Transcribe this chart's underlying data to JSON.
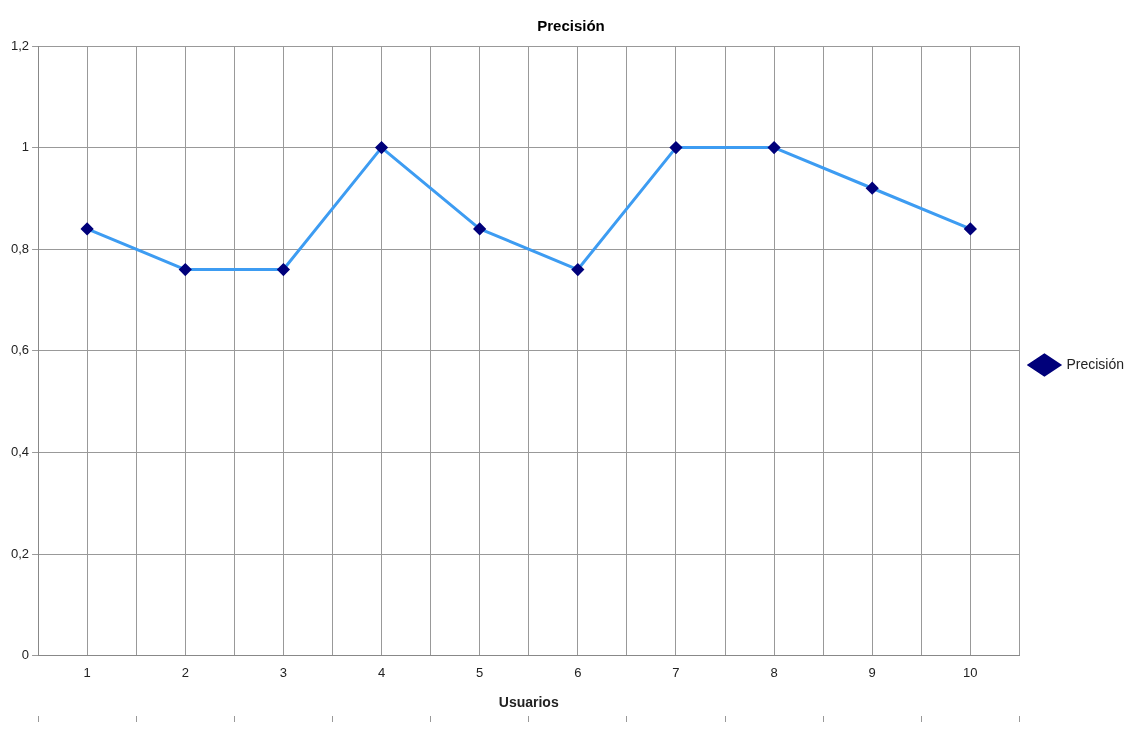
{
  "chart_data": {
    "type": "line",
    "title": "Precisión",
    "xlabel": "Usuarios",
    "categories": [
      "1",
      "2",
      "3",
      "4",
      "5",
      "6",
      "7",
      "8",
      "9",
      "10"
    ],
    "series": [
      {
        "name": "Precisión",
        "color": "#3d9cf2",
        "values": [
          0.84,
          0.76,
          0.76,
          1,
          0.84,
          0.76,
          1,
          1,
          0.92,
          0.84
        ]
      }
    ],
    "ylim": [
      0,
      1.2
    ],
    "yticks": [
      0,
      {
        "value": 0.2,
        "label": "0,2"
      },
      {
        "value": 0.4,
        "label": "0,4"
      },
      {
        "value": 0.6,
        "label": "0,6"
      },
      {
        "value": 0.8,
        "label": "0,8"
      },
      1,
      {
        "value": 1.2,
        "label": "1,2"
      }
    ],
    "grid": true,
    "legend": "right",
    "marker": "diamond",
    "line_style": "solid"
  }
}
